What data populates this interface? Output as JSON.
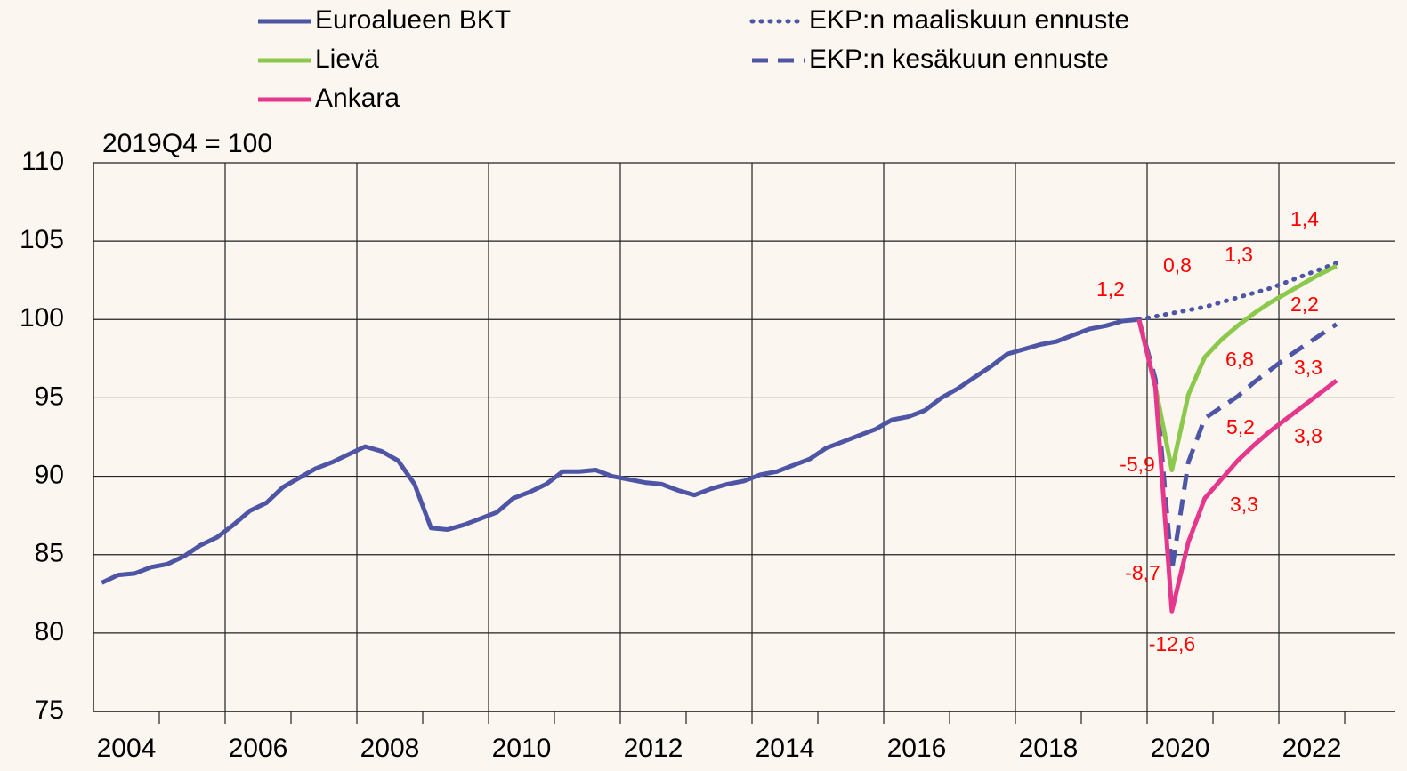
{
  "chart_data": {
    "type": "line",
    "subtitle": "2019Q4 = 100",
    "xlim": [
      2004,
      2023.77
    ],
    "ylim": [
      75,
      110
    ],
    "xticks": [
      2004,
      2006,
      2008,
      2010,
      2012,
      2014,
      2016,
      2018,
      2020,
      2022
    ],
    "yticks": [
      75,
      80,
      85,
      90,
      95,
      100,
      105,
      110
    ],
    "grid": true,
    "series": [
      {
        "name": "Euroalueen BKT",
        "color": "#4f55a5",
        "style": "solid",
        "x": [
          2004.125,
          2004.375,
          2004.625,
          2004.875,
          2005.125,
          2005.375,
          2005.625,
          2005.875,
          2006.125,
          2006.375,
          2006.625,
          2006.875,
          2007.125,
          2007.375,
          2007.625,
          2007.875,
          2008.125,
          2008.375,
          2008.625,
          2008.875,
          2009.125,
          2009.375,
          2009.625,
          2009.875,
          2010.125,
          2010.375,
          2010.625,
          2010.875,
          2011.125,
          2011.375,
          2011.625,
          2011.875,
          2012.125,
          2012.375,
          2012.625,
          2012.875,
          2013.125,
          2013.375,
          2013.625,
          2013.875,
          2014.125,
          2014.375,
          2014.625,
          2014.875,
          2015.125,
          2015.375,
          2015.625,
          2015.875,
          2016.125,
          2016.375,
          2016.625,
          2016.875,
          2017.125,
          2017.375,
          2017.625,
          2017.875,
          2018.125,
          2018.375,
          2018.625,
          2018.875,
          2019.125,
          2019.375,
          2019.625,
          2019.875
        ],
        "values": [
          83.2,
          83.7,
          83.8,
          84.2,
          84.4,
          84.9,
          85.6,
          86.1,
          86.9,
          87.8,
          88.3,
          89.3,
          89.9,
          90.5,
          90.9,
          91.4,
          91.9,
          91.6,
          91.0,
          89.5,
          86.7,
          86.6,
          86.9,
          87.3,
          87.7,
          88.6,
          89.0,
          89.5,
          90.3,
          90.3,
          90.4,
          90.0,
          89.8,
          89.6,
          89.5,
          89.1,
          88.8,
          89.2,
          89.5,
          89.7,
          90.1,
          90.3,
          90.7,
          91.1,
          91.8,
          92.2,
          92.6,
          93.0,
          93.6,
          93.8,
          94.2,
          95.0,
          95.6,
          96.3,
          97.0,
          97.8,
          98.1,
          98.4,
          98.6,
          99.0,
          99.4,
          99.6,
          99.9,
          100.0
        ]
      },
      {
        "name": "EKP:n maaliskuun ennuste",
        "color": "#4f55a5",
        "style": "dotted",
        "x": [
          2019.875,
          2020.125,
          2020.375,
          2020.625,
          2020.875,
          2021.125,
          2021.375,
          2021.625,
          2021.875,
          2022.125,
          2022.375,
          2022.625,
          2022.875
        ],
        "values": [
          100.0,
          100.2,
          100.4,
          100.6,
          100.8,
          101.1,
          101.4,
          101.7,
          102.0,
          102.4,
          102.8,
          103.2,
          103.6
        ]
      },
      {
        "name": "EKP:n kesäkuun ennuste",
        "color": "#4f55a5",
        "style": "dashed",
        "x": [
          2019.875,
          2020.125,
          2020.375,
          2020.625,
          2020.875,
          2021.125,
          2021.375,
          2021.625,
          2021.875,
          2022.125,
          2022.375,
          2022.625,
          2022.875
        ],
        "values": [
          100.0,
          96.2,
          84.0,
          90.9,
          93.7,
          94.4,
          95.1,
          96.0,
          96.8,
          97.6,
          98.3,
          99.0,
          99.7
        ]
      },
      {
        "name": "Lievä",
        "color": "#8cc84b",
        "style": "solid",
        "x": [
          2019.875,
          2020.125,
          2020.375,
          2020.625,
          2020.875,
          2021.125,
          2021.375,
          2021.625,
          2021.875,
          2022.125,
          2022.375,
          2022.625,
          2022.875
        ],
        "values": [
          100.0,
          95.7,
          90.4,
          95.2,
          97.6,
          98.7,
          99.6,
          100.4,
          101.1,
          101.7,
          102.3,
          102.9,
          103.4
        ]
      },
      {
        "name": "Ankara",
        "color": "#e5378b",
        "style": "solid",
        "x": [
          2019.875,
          2020.125,
          2020.375,
          2020.625,
          2020.875,
          2021.125,
          2021.375,
          2021.625,
          2021.875,
          2022.125,
          2022.375,
          2022.625,
          2022.875
        ],
        "values": [
          100.0,
          95.7,
          81.4,
          85.8,
          88.6,
          89.8,
          91.0,
          92.0,
          92.9,
          93.7,
          94.5,
          95.3,
          96.1
        ]
      }
    ],
    "annotations": [
      "1,2",
      "0,8",
      "1,3",
      "1,4",
      "2,2",
      "6,8",
      "3,3",
      "5,2",
      "3,8",
      "-5,9",
      "3,3",
      "-8,7",
      "-12,6"
    ],
    "annotation_color": "#ff0000"
  }
}
